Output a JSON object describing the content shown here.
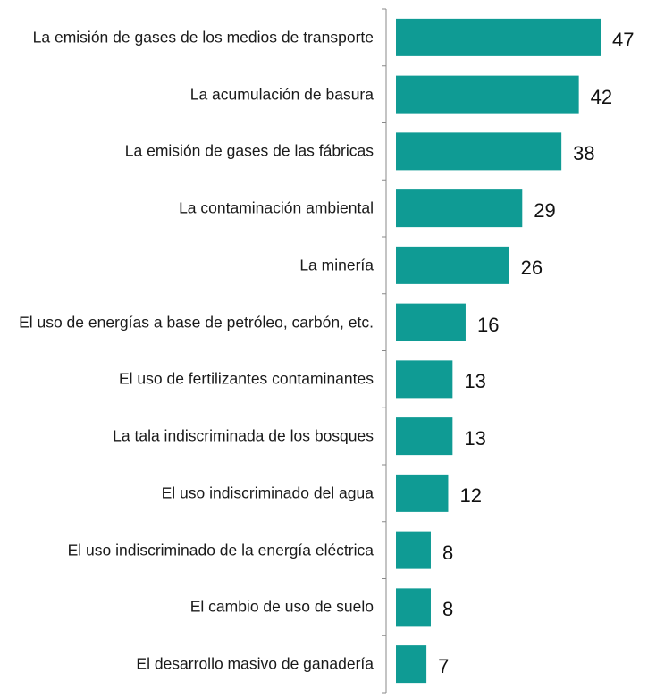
{
  "chart_data": {
    "type": "bar",
    "orientation": "horizontal",
    "categories": [
      "La emisión de gases de los medios de transporte",
      "La acumulación de basura",
      "La emisión de gases de las fábricas",
      "La contaminación ambiental",
      "La minería",
      "El uso de energías a base de petróleo, carbón, etc.",
      "El uso de fertilizantes contaminantes",
      "La tala indiscriminada de los bosques",
      "El uso indiscriminado del agua",
      "El uso indiscriminado de la energía eléctrica",
      "El cambio de uso de suelo",
      "El desarrollo masivo de ganadería"
    ],
    "values": [
      47,
      42,
      38,
      29,
      26,
      16,
      13,
      13,
      12,
      8,
      8,
      7
    ],
    "color": "#0f9b94"
  }
}
